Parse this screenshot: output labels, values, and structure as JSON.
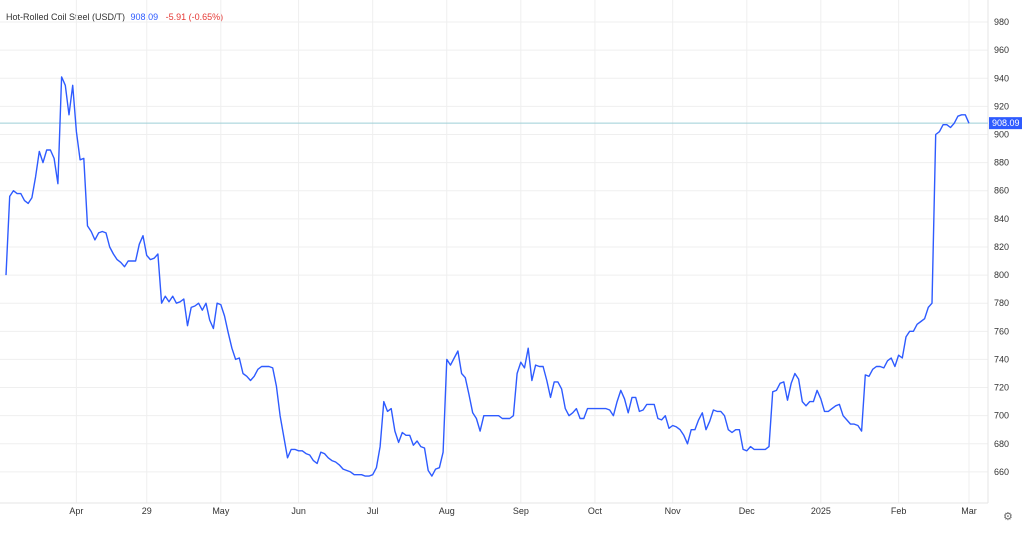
{
  "header": {
    "name": "Hot-Rolled Coil Steel (USD/T)",
    "price": "908.09",
    "change": "-5.91 (-0.65%)"
  },
  "colors": {
    "line": "#2e5bff",
    "last_price_line": "#9ecfd6",
    "price_tag": "#2e5bff",
    "change_negative": "#e53935",
    "grid": "#efefef"
  },
  "settings_icon": "gear-icon",
  "chart_data": {
    "type": "line",
    "title": "Hot-Rolled Coil Steel (USD/T)",
    "xlabel": "",
    "ylabel": "",
    "ylim": [
      640,
      990
    ],
    "yticks": [
      660,
      680,
      700,
      720,
      740,
      760,
      780,
      800,
      820,
      840,
      860,
      880,
      900,
      920,
      940,
      960,
      980
    ],
    "last_value_label": "908.09",
    "last_value": 908.09,
    "xticks": [
      {
        "label": "Apr",
        "index": 19
      },
      {
        "label": "29",
        "index": 38
      },
      {
        "label": "May",
        "index": 58
      },
      {
        "label": "Jun",
        "index": 79
      },
      {
        "label": "Jul",
        "index": 99
      },
      {
        "label": "Aug",
        "index": 119
      },
      {
        "label": "Sep",
        "index": 139
      },
      {
        "label": "Oct",
        "index": 159
      },
      {
        "label": "Nov",
        "index": 180
      },
      {
        "label": "Dec",
        "index": 200
      },
      {
        "label": "2025",
        "index": 220
      },
      {
        "label": "Feb",
        "index": 241
      },
      {
        "label": "Mar",
        "index": 260
      }
    ],
    "grid": true,
    "legend": "none",
    "series": [
      {
        "values": [
          800,
          856,
          860,
          858,
          858,
          853,
          851,
          855,
          870,
          888,
          880,
          889,
          889,
          883,
          865,
          941,
          935,
          914,
          935,
          902,
          882,
          883,
          835,
          831,
          825,
          830,
          831,
          830,
          820,
          815,
          811,
          809,
          806,
          810,
          810,
          810,
          822,
          828,
          814,
          811,
          812,
          815,
          780,
          785,
          781,
          785,
          780,
          781,
          783,
          764,
          777,
          778,
          780,
          775,
          780,
          768,
          762,
          780,
          779,
          771,
          759,
          748,
          740,
          741,
          730,
          728,
          725,
          728,
          733,
          735,
          735,
          735,
          734,
          721,
          700,
          685,
          670,
          676,
          676,
          675,
          675,
          673,
          672,
          668,
          666,
          674,
          673,
          670,
          668,
          667,
          665,
          662,
          661,
          660,
          658,
          658,
          658,
          657,
          657,
          658,
          663,
          678,
          710,
          703,
          705,
          689,
          681,
          688,
          686,
          686,
          679,
          682,
          678,
          677,
          661,
          657,
          662,
          663,
          674,
          740,
          736,
          741,
          746,
          730,
          727,
          715,
          702,
          698,
          689,
          700,
          700,
          700,
          700,
          700,
          698,
          698,
          698,
          700,
          730,
          738,
          734,
          748,
          725,
          736,
          735,
          735,
          725,
          713,
          724,
          724,
          719,
          705,
          700,
          702,
          705,
          698,
          698,
          705,
          705,
          705,
          705,
          705,
          705,
          704,
          700,
          710,
          718,
          712,
          702,
          713,
          713,
          703,
          704,
          708,
          708,
          708,
          698,
          697,
          700,
          691,
          693,
          692,
          690,
          686,
          680,
          690,
          690,
          697,
          702,
          690,
          696,
          704,
          703,
          703,
          700,
          690,
          688,
          690,
          690,
          676,
          675,
          678,
          676,
          676,
          676,
          676,
          678,
          717,
          718,
          723,
          724,
          711,
          723,
          730,
          726,
          710,
          707,
          710,
          710,
          718,
          712,
          703,
          703,
          705,
          707,
          708,
          700,
          697,
          694,
          694,
          693,
          689,
          729,
          728,
          733,
          735,
          735,
          734,
          739,
          741,
          735,
          743,
          741,
          756,
          760,
          760,
          765,
          767,
          769,
          777,
          780,
          900,
          902,
          907,
          907,
          905,
          908,
          913,
          914,
          914,
          908
        ]
      }
    ]
  }
}
